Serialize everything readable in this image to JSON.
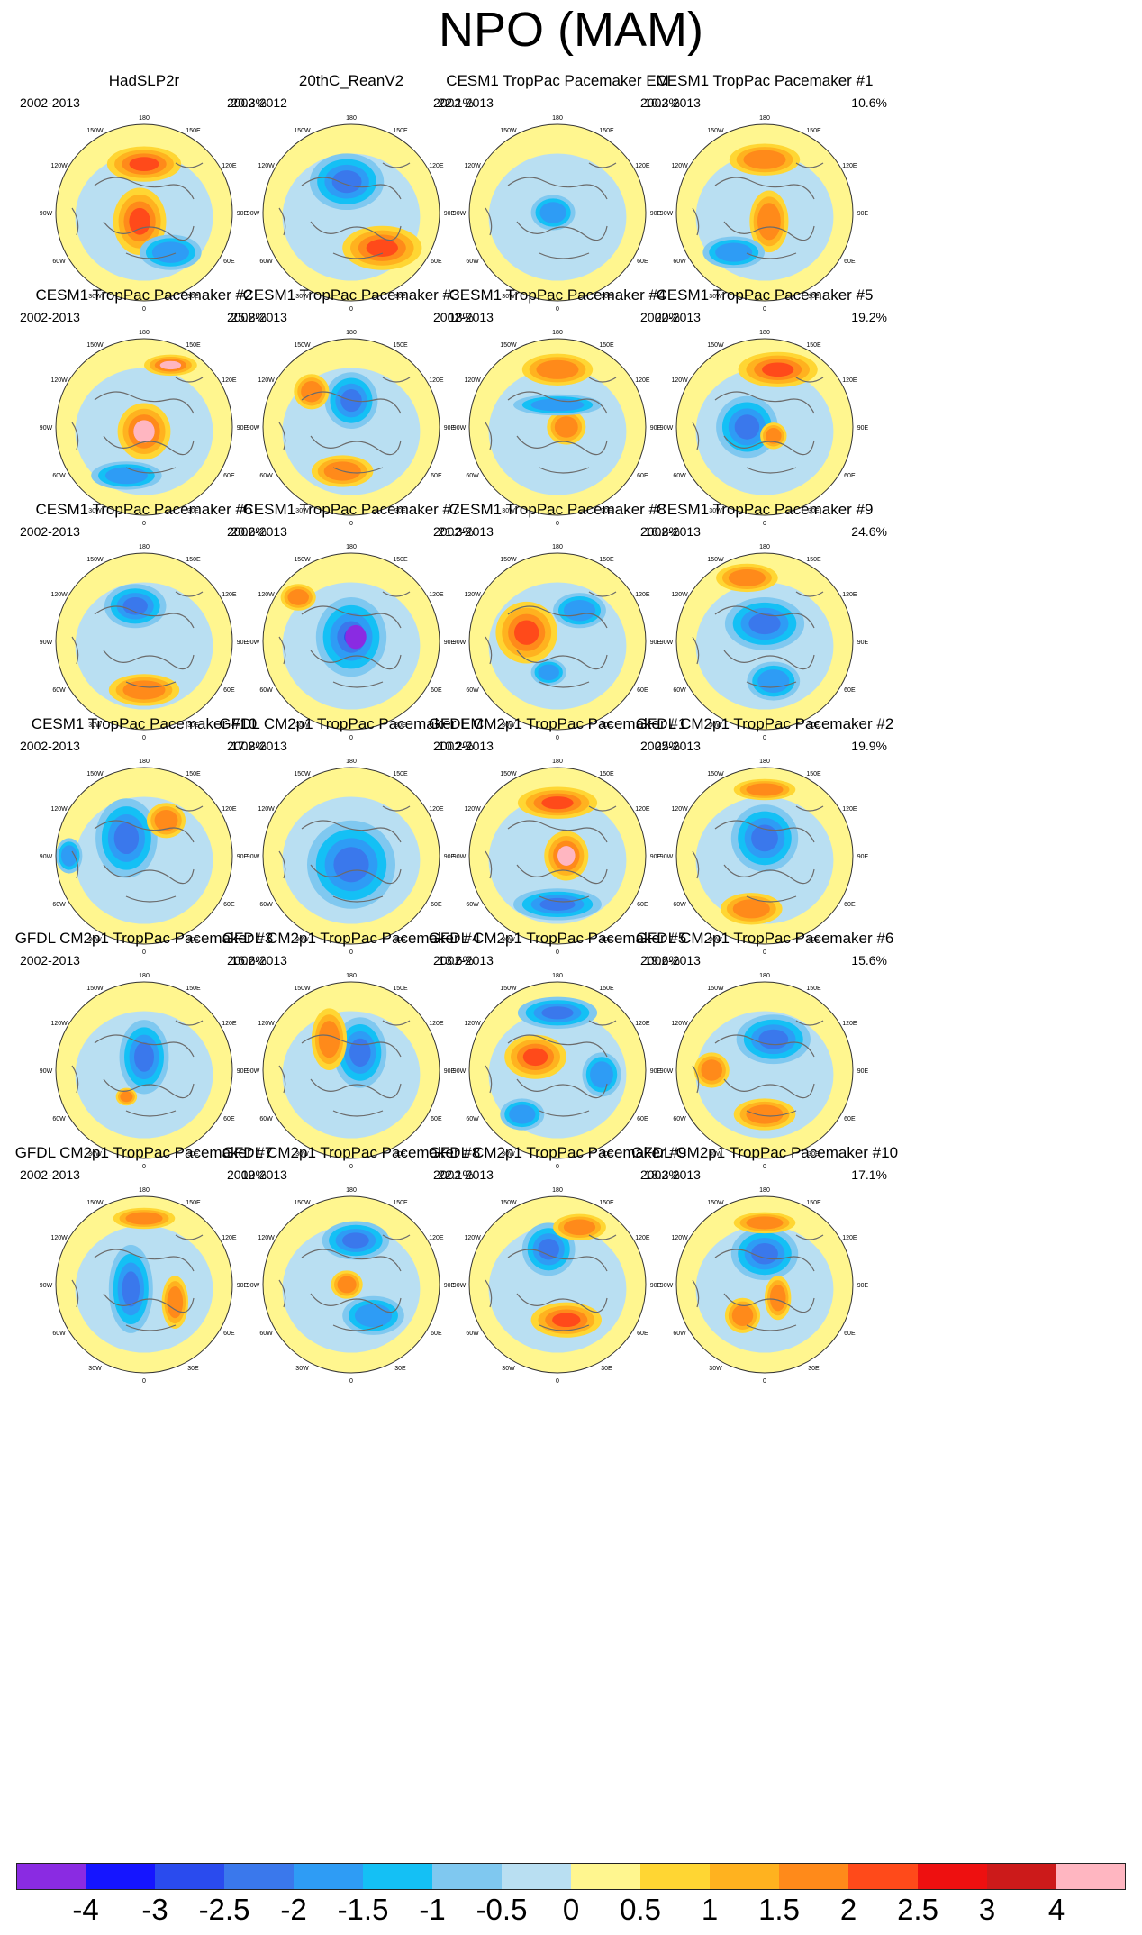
{
  "chart_data": {
    "type": "heatmap",
    "subtype": "polar-stereographic-map-panels",
    "title": "NPO (MAM)",
    "map_labels": {
      "top": "180",
      "top_right": "150E",
      "right_upper": "120E",
      "right": "90E",
      "right_lower": "60E",
      "bottom_right": "30E",
      "bottom": "0",
      "bottom_left": "30W",
      "left_lower": "60W",
      "left": "90W",
      "left_upper": "120W",
      "top_left": "150W"
    },
    "panels": [
      {
        "title": "HadSLP2r",
        "period": "2002-2013",
        "percent": "20.3%"
      },
      {
        "title": "20thC_ReanV2",
        "period": "2002-2012",
        "percent": "22.1%"
      },
      {
        "title": "CESM1 TropPac Pacemaker EM",
        "period": "2002-2013",
        "percent": "10.3%"
      },
      {
        "title": "CESM1 TropPac Pacemaker #1",
        "period": "2002-2013",
        "percent": "10.6%"
      },
      {
        "title": "CESM1 TropPac Pacemaker #2",
        "period": "2002-2013",
        "percent": "25.8%"
      },
      {
        "title": "CESM1 TropPac Pacemaker #3",
        "period": "2002-2013",
        "percent": "18%"
      },
      {
        "title": "CESM1 TropPac Pacemaker #4",
        "period": "2002-2013",
        "percent": "20%"
      },
      {
        "title": "CESM1 TropPac Pacemaker #5",
        "period": "2002-2013",
        "percent": "19.2%"
      },
      {
        "title": "CESM1 TropPac Pacemaker #6",
        "period": "2002-2013",
        "percent": "20.6%"
      },
      {
        "title": "CESM1 TropPac Pacemaker #7",
        "period": "2002-2013",
        "percent": "21.3%"
      },
      {
        "title": "CESM1 TropPac Pacemaker #8",
        "period": "2002-2013",
        "percent": "16.8%"
      },
      {
        "title": "CESM1 TropPac Pacemaker #9",
        "period": "2002-2013",
        "percent": "24.6%"
      },
      {
        "title": "CESM1 TropPac Pacemaker #10",
        "period": "2002-2013",
        "percent": "17.8%"
      },
      {
        "title": "GFDL CM2p1 TropPac Pacemaker EM",
        "period": "2002-2013",
        "percent": "10.2%"
      },
      {
        "title": "GFDL CM2p1 TropPac Pacemaker #1",
        "period": "2002-2013",
        "percent": "25%"
      },
      {
        "title": "GFDL CM2p1 TropPac Pacemaker #2",
        "period": "2002-2013",
        "percent": "19.9%"
      },
      {
        "title": "GFDL CM2p1 TropPac Pacemaker #3",
        "period": "2002-2013",
        "percent": "16.6%"
      },
      {
        "title": "GFDL CM2p1 TropPac Pacemaker #4",
        "period": "2002-2013",
        "percent": "13.6%"
      },
      {
        "title": "GFDL CM2p1 TropPac Pacemaker #5",
        "period": "2002-2013",
        "percent": "19.6%"
      },
      {
        "title": "GFDL CM2p1 TropPac Pacemaker #6",
        "period": "2002-2013",
        "percent": "15.6%"
      },
      {
        "title": "GFDL CM2p1 TropPac Pacemaker #7",
        "period": "2002-2013",
        "percent": "19%"
      },
      {
        "title": "GFDL CM2p1 TropPac Pacemaker #8",
        "period": "2002-2013",
        "percent": "22.1%"
      },
      {
        "title": "GFDL CM2p1 TropPac Pacemaker #9",
        "period": "2002-2013",
        "percent": "18.3%"
      },
      {
        "title": "GFDL CM2p1 TropPac Pacemaker #10",
        "period": "2002-2013",
        "percent": "17.1%"
      }
    ],
    "colorbar": {
      "colors": [
        "#8a2be2",
        "#1515ff",
        "#2a4bee",
        "#3a78ec",
        "#2e9cf5",
        "#14c0f5",
        "#7fc8f0",
        "#b9dff2",
        "#fff68f",
        "#ffd633",
        "#ffb21f",
        "#ff8a1a",
        "#ff4a1a",
        "#ee1010",
        "#cc1a1a",
        "#ffb6c1"
      ],
      "ticks": [
        "-4",
        "-3",
        "-2.5",
        "-2",
        "-1.5",
        "-1",
        "-0.5",
        "0",
        "0.5",
        "1",
        "1.5",
        "2",
        "2.5",
        "3",
        "4"
      ]
    }
  }
}
